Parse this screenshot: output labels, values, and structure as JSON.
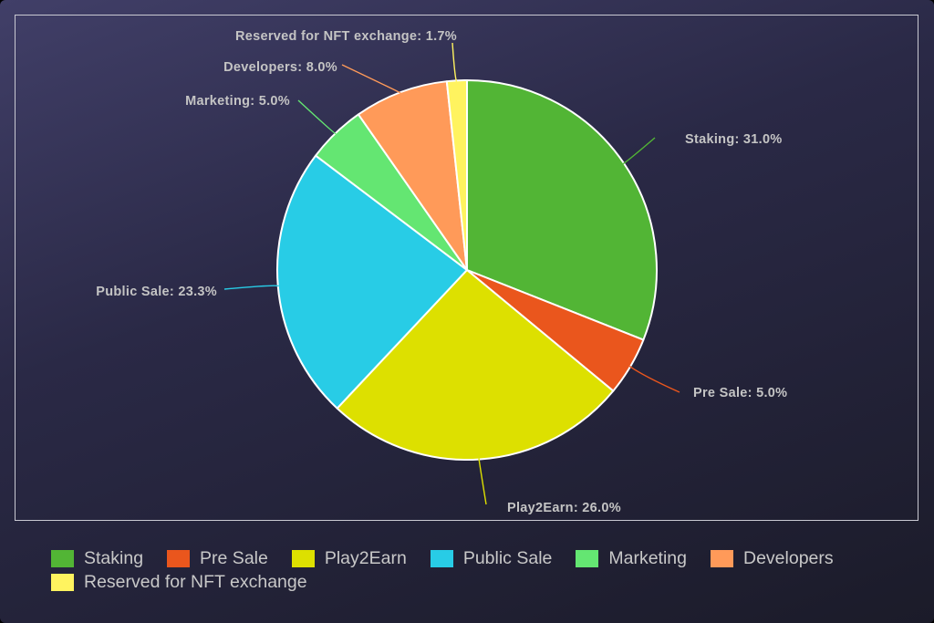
{
  "chart_data": {
    "type": "pie",
    "title": "",
    "slices": [
      {
        "label": "Staking",
        "value": 31.0,
        "display": "31.0%",
        "color": "#52b535"
      },
      {
        "label": "Pre Sale",
        "value": 5.0,
        "display": "5.0%",
        "color": "#ea561d"
      },
      {
        "label": "Play2Earn",
        "value": 26.0,
        "display": "26.0%",
        "color": "#dde000"
      },
      {
        "label": "Public Sale",
        "value": 23.3,
        "display": "23.3%",
        "color": "#28cce6"
      },
      {
        "label": "Marketing",
        "value": 5.0,
        "display": "5.0%",
        "color": "#64e672"
      },
      {
        "label": "Developers",
        "value": 8.0,
        "display": "8.0%",
        "color": "#ff9a59"
      },
      {
        "label": "Reserved for NFT exchange",
        "value": 1.7,
        "display": "1.7%",
        "color": "#fff35f"
      }
    ],
    "legend_position": "bottom",
    "label_separator": ": "
  }
}
